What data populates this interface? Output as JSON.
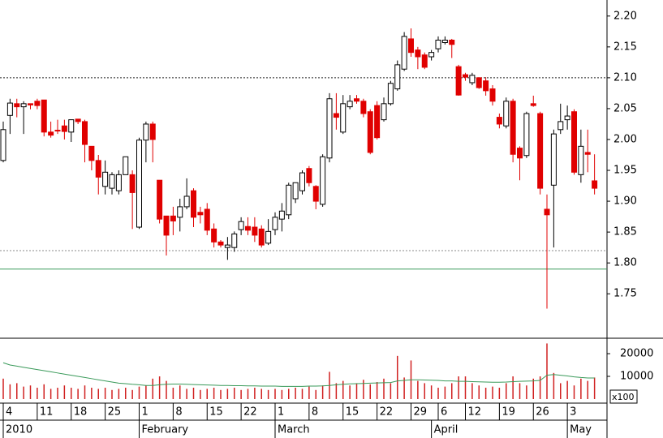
{
  "chart_data": {
    "type": "candlestick",
    "categories": [
      "4",
      null,
      null,
      null,
      null,
      "11",
      null,
      null,
      null,
      null,
      "18",
      null,
      null,
      null,
      null,
      "25",
      null,
      null,
      null,
      null,
      "1",
      null,
      null,
      null,
      null,
      "8",
      null,
      null,
      null,
      null,
      "15",
      null,
      null,
      null,
      null,
      "22",
      null,
      null,
      null,
      null,
      "1",
      null,
      null,
      null,
      null,
      "8",
      null,
      null,
      null,
      null,
      "15",
      null,
      null,
      null,
      null,
      "22",
      null,
      null,
      null,
      null,
      "29",
      null,
      null,
      null,
      "6",
      null,
      null,
      null,
      "12",
      null,
      null,
      null,
      null,
      "19",
      null,
      null,
      null,
      null,
      "26",
      null,
      null,
      null,
      null,
      "3",
      null,
      null,
      null,
      null
    ],
    "month_labels": [
      "2010",
      null,
      null,
      null,
      null,
      null,
      null,
      null,
      null,
      null,
      null,
      null,
      null,
      null,
      null,
      null,
      null,
      null,
      null,
      null,
      "February",
      null,
      null,
      null,
      null,
      null,
      null,
      null,
      null,
      null,
      null,
      null,
      null,
      null,
      null,
      null,
      null,
      null,
      null,
      null,
      "March",
      null,
      null,
      null,
      null,
      null,
      null,
      null,
      null,
      null,
      null,
      null,
      null,
      null,
      null,
      null,
      null,
      null,
      null,
      null,
      null,
      null,
      null,
      "April",
      null,
      null,
      null,
      null,
      null,
      null,
      null,
      null,
      null,
      null,
      null,
      null,
      null,
      null,
      null,
      null,
      null,
      null,
      null,
      "May",
      null,
      null,
      null,
      null
    ],
    "open": [
      1.966,
      2.039,
      2.058,
      2.053,
      2.058,
      2.062,
      2.064,
      2.012,
      2.015,
      2.022,
      2.012,
      2.033,
      2.029,
      1.989,
      1.966,
      1.924,
      1.921,
      1.917,
      1.943,
      1.943,
      1.858,
      1.999,
      2.025,
      1.934,
      1.876,
      1.876,
      1.874,
      1.891,
      1.917,
      1.882,
      1.887,
      1.855,
      1.834,
      1.825,
      1.825,
      1.854,
      1.859,
      1.858,
      1.855,
      1.832,
      1.854,
      1.871,
      1.878,
      1.904,
      1.917,
      1.953,
      1.924,
      1.895,
      1.97,
      2.042,
      2.012,
      2.053,
      2.066,
      2.062,
      2.045,
      2.055,
      2.032,
      2.058,
      2.082,
      2.114,
      2.163,
      2.145,
      2.137,
      2.134,
      2.147,
      2.157,
      2.161,
      2.118,
      2.105,
      2.092,
      2.1,
      2.095,
      2.082,
      2.036,
      2.022,
      2.062,
      1.986,
      1.974,
      2.058,
      2.042,
      1.887,
      1.926,
      2.016,
      2.032,
      2.045,
      1.943,
      1.979,
      1.933
    ],
    "high": [
      2.029,
      2.066,
      2.066,
      2.062,
      2.058,
      2.066,
      2.064,
      2.029,
      2.032,
      2.032,
      2.032,
      2.033,
      2.032,
      1.989,
      1.975,
      1.966,
      1.947,
      1.95,
      1.972,
      1.95,
      2.003,
      2.029,
      2.029,
      1.934,
      1.876,
      1.891,
      1.904,
      1.937,
      1.921,
      1.891,
      1.897,
      1.864,
      1.837,
      1.842,
      1.851,
      1.874,
      1.874,
      1.874,
      1.861,
      1.871,
      1.882,
      1.897,
      1.93,
      1.93,
      1.95,
      1.957,
      1.926,
      1.976,
      2.075,
      2.075,
      2.072,
      2.072,
      2.072,
      2.066,
      2.049,
      2.062,
      2.068,
      2.095,
      2.128,
      2.174,
      2.18,
      2.15,
      2.141,
      2.145,
      2.167,
      2.167,
      2.163,
      2.121,
      2.108,
      2.108,
      2.101,
      2.101,
      2.088,
      2.042,
      2.068,
      2.066,
      1.989,
      2.045,
      2.071,
      2.045,
      1.911,
      2.016,
      2.058,
      2.055,
      2.049,
      2.016,
      2.016,
      1.976
    ],
    "low": [
      1.963,
      2.009,
      2.036,
      2.009,
      2.049,
      2.049,
      2.005,
      2.003,
      2.009,
      2.0,
      1.996,
      2.025,
      1.963,
      1.95,
      1.911,
      1.911,
      1.911,
      1.911,
      1.943,
      1.855,
      1.855,
      1.963,
      1.963,
      1.864,
      1.812,
      1.845,
      1.851,
      1.887,
      1.858,
      1.864,
      1.845,
      1.825,
      1.825,
      1.805,
      1.818,
      1.845,
      1.845,
      1.834,
      1.825,
      1.829,
      1.845,
      1.851,
      1.871,
      1.897,
      1.911,
      1.924,
      1.887,
      1.891,
      1.963,
      2.016,
      2.009,
      2.049,
      2.058,
      2.036,
      1.976,
      2.0,
      2.029,
      2.055,
      2.079,
      2.111,
      2.134,
      2.114,
      2.114,
      2.128,
      2.141,
      2.154,
      2.132,
      2.071,
      2.095,
      2.088,
      2.082,
      2.071,
      2.055,
      2.018,
      2.018,
      1.963,
      1.934,
      1.97,
      2.053,
      1.911,
      1.726,
      1.825,
      2.009,
      2.016,
      1.943,
      1.93,
      1.947,
      1.911
    ],
    "close": [
      2.016,
      2.059,
      2.053,
      2.058,
      2.056,
      2.055,
      2.012,
      2.007,
      2.014,
      2.013,
      2.032,
      2.029,
      1.992,
      1.966,
      1.939,
      1.947,
      1.943,
      1.943,
      1.972,
      1.914,
      1.999,
      2.025,
      2.0,
      1.871,
      1.845,
      1.868,
      1.891,
      1.908,
      1.874,
      1.878,
      1.853,
      1.834,
      1.829,
      1.829,
      1.847,
      1.867,
      1.853,
      1.845,
      1.829,
      1.851,
      1.874,
      1.884,
      1.926,
      1.93,
      1.946,
      1.93,
      1.9,
      1.972,
      2.066,
      2.036,
      2.058,
      2.062,
      2.062,
      2.042,
      1.979,
      2.003,
      2.058,
      2.091,
      2.121,
      2.167,
      2.141,
      2.134,
      2.117,
      2.141,
      2.161,
      2.161,
      2.154,
      2.072,
      2.101,
      2.104,
      2.084,
      2.079,
      2.062,
      2.025,
      2.062,
      1.976,
      1.97,
      2.042,
      2.055,
      1.921,
      1.878,
      2.009,
      2.029,
      2.038,
      1.947,
      1.989,
      1.976,
      1.921
    ],
    "up_color": "#ffffff",
    "down_color": "#e00000",
    "ylim": [
      1.678,
      2.226
    ],
    "yticks": [
      1.75,
      {
        "value": 1.8,
        "label": "1.80"
      },
      1.85,
      {
        "value": 1.9,
        "label": "1.90"
      },
      1.95,
      {
        "value": 2.0,
        "label": "2.00"
      },
      2.05,
      {
        "value": 2.1,
        "label": "2.10"
      },
      2.15,
      {
        "value": 2.2,
        "label": "2.20"
      }
    ],
    "reference_lines": [
      {
        "value": 2.1,
        "style": "dotted",
        "color": "#222222"
      },
      {
        "value": 1.82,
        "style": "dotted",
        "color": "#888888"
      },
      {
        "value": 1.79,
        "style": "solid",
        "color": "#3a9a5a"
      }
    ],
    "volume": {
      "unit_label": "x100",
      "color": "#d02020",
      "values": [
        9000,
        6500,
        7000,
        5500,
        6000,
        5000,
        6500,
        4500,
        5000,
        6000,
        5000,
        4500,
        6000,
        5000,
        4500,
        5000,
        4000,
        4500,
        5000,
        4000,
        5500,
        6000,
        9000,
        10000,
        8000,
        5000,
        6000,
        4500,
        5000,
        4000,
        4500,
        5000,
        4000,
        4500,
        5000,
        4000,
        4500,
        5000,
        4500,
        4000,
        4500,
        4000,
        4500,
        5000,
        4500,
        5500,
        4000,
        6000,
        12000,
        7000,
        8000,
        6000,
        7000,
        8500,
        6500,
        7500,
        9000,
        7000,
        19000,
        9500,
        17000,
        8000,
        7000,
        6000,
        5000,
        5500,
        7000,
        10000,
        10000,
        7000,
        6000,
        5000,
        5500,
        5000,
        7000,
        10000,
        7000,
        6000,
        9000,
        10000,
        24500,
        11500,
        7000,
        8000,
        6000,
        9000,
        8000,
        9500
      ],
      "moving_average": {
        "color": "#3a9a5a",
        "values": [
          16000,
          15000,
          14500,
          14000,
          13500,
          13000,
          12500,
          12000,
          11500,
          11000,
          10500,
          10000,
          9500,
          9000,
          8500,
          8000,
          7500,
          7000,
          6800,
          6500,
          6300,
          6000,
          6000,
          6300,
          6500,
          6600,
          6600,
          6500,
          6400,
          6300,
          6200,
          6100,
          6000,
          6000,
          5900,
          5900,
          5800,
          5800,
          5700,
          5700,
          5700,
          5600,
          5600,
          5600,
          5600,
          5700,
          5700,
          5800,
          6000,
          6300,
          6500,
          6700,
          6800,
          6900,
          7000,
          7100,
          7200,
          7300,
          8000,
          8200,
          8500,
          8500,
          8400,
          8300,
          8200,
          8000,
          8000,
          7800,
          7800,
          7700,
          7600,
          7500,
          7400,
          7400,
          7500,
          7700,
          7800,
          7900,
          8000,
          8200,
          10500,
          10800,
          10500,
          10200,
          9800,
          9500,
          9300,
          9300
        ]
      },
      "ylim": [
        0,
        26800
      ],
      "yticks": [
        10000,
        20000
      ]
    }
  }
}
